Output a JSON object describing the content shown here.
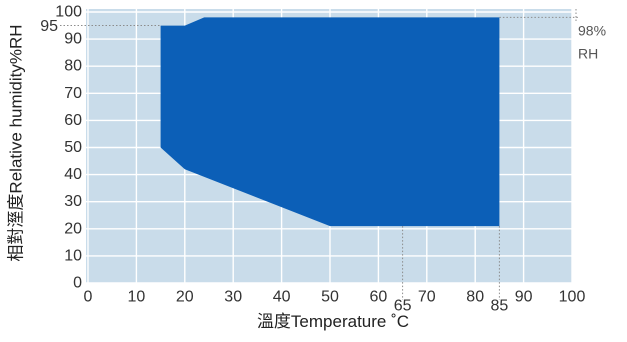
{
  "chart_data": {
    "type": "area",
    "xlabel": "溫度Temperature ˚C",
    "ylabel": "相對溼度Relative humidity%RH",
    "xlim": [
      0,
      100
    ],
    "ylim": [
      0,
      100
    ],
    "x_ticks": [
      0,
      10,
      20,
      30,
      40,
      50,
      60,
      70,
      80,
      90,
      100
    ],
    "y_ticks": [
      0,
      10,
      20,
      30,
      40,
      50,
      60,
      70,
      80,
      90,
      100
    ],
    "grid": true,
    "region": {
      "points": [
        [
          15,
          95
        ],
        [
          20,
          95
        ],
        [
          24,
          98
        ],
        [
          85,
          98
        ],
        [
          85,
          21
        ],
        [
          50,
          21
        ],
        [
          20,
          42
        ],
        [
          15,
          50
        ]
      ]
    },
    "reference_values": [
      {
        "axis": "y",
        "value": 95,
        "label": "95",
        "side": "left"
      },
      {
        "axis": "y",
        "value": 98,
        "label": "98%",
        "unit_label": "RH",
        "side": "right"
      },
      {
        "axis": "x",
        "value": 65,
        "label": "65"
      },
      {
        "axis": "x",
        "value": 85,
        "label": "85"
      }
    ],
    "colors": {
      "plot_background": "#c9dcea",
      "grid": "#ffffff",
      "region": "#0c5fb7",
      "guide": "#8c8c8c"
    }
  }
}
